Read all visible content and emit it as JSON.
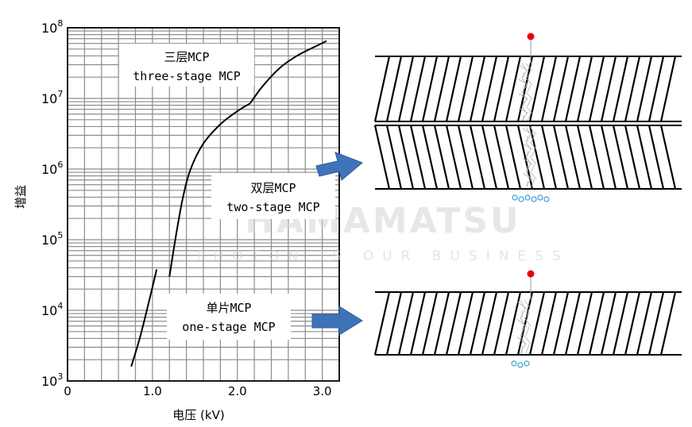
{
  "chart_data": {
    "type": "line",
    "xlabel": "电压 (kV)",
    "ylabel": "增益",
    "x_ticks": [
      "0",
      "1.0",
      "2.0",
      "3.0"
    ],
    "y_ticks": [
      {
        "base": "10",
        "exp": "3"
      },
      {
        "base": "10",
        "exp": "4"
      },
      {
        "base": "10",
        "exp": "5"
      },
      {
        "base": "10",
        "exp": "6"
      },
      {
        "base": "10",
        "exp": "7"
      },
      {
        "base": "10",
        "exp": "8"
      }
    ],
    "xlim": [
      0,
      3.2
    ],
    "ylim": [
      1000,
      100000000
    ],
    "y_scale": "log",
    "grid": true,
    "series": [
      {
        "points": [
          [
            0.75,
            1600
          ],
          [
            0.85,
            4000
          ],
          [
            0.95,
            12000
          ],
          [
            1.05,
            38000
          ]
        ]
      },
      {
        "points": [
          [
            1.2,
            30000
          ],
          [
            1.28,
            120000
          ],
          [
            1.36,
            400000
          ],
          [
            1.45,
            1000000
          ],
          [
            1.6,
            2300000
          ],
          [
            1.8,
            4300000
          ],
          [
            2.0,
            6600000
          ],
          [
            2.15,
            8500000
          ]
        ]
      },
      {
        "points": [
          [
            2.15,
            8500000
          ],
          [
            2.3,
            15000000
          ],
          [
            2.5,
            27000000
          ],
          [
            2.7,
            40000000
          ],
          [
            2.9,
            53000000
          ],
          [
            3.05,
            65000000
          ]
        ]
      }
    ],
    "annotations": [
      {
        "cn": "三层MCP",
        "en": "three-stage MCP"
      },
      {
        "cn": "双层MCP",
        "en": "two-stage MCP"
      },
      {
        "cn": "单片MCP",
        "en": "one-stage MCP"
      }
    ]
  },
  "watermark": {
    "brand": "HAMAMATSU",
    "tagline": "PHOTON IS OUR BUSINESS"
  },
  "colors": {
    "arrow": "#3f73b9",
    "electron_input": "#e8000e",
    "electron_output": "#3a9fd6",
    "grid": "#8c8c8c",
    "curve": "#000000"
  }
}
